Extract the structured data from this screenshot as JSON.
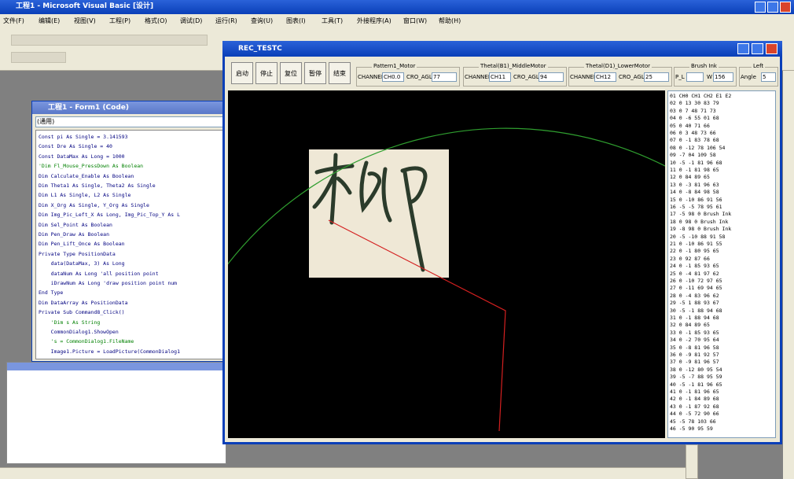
{
  "ide": {
    "title": "工程1 - Microsoft Visual Basic [设计]",
    "menu": [
      "文件(F)",
      "编辑(E)",
      "视图(V)",
      "工程(P)",
      "格式(O)",
      "调试(D)",
      "运行(R)",
      "查询(U)",
      "图表(I)",
      "工具(T)",
      "外接程序(A)",
      "窗口(W)",
      "帮助(H)"
    ]
  },
  "code_window": {
    "title": "工程1 - Form1 (Code)",
    "object": "(通用)",
    "lines": [
      "Const pi As Single = 3.141593",
      "Const Dre As Single = 40",
      "Const DataMax As Long = 1000",
      "'Dim Fl_Mouse_PressDown As Boolean",
      "Dim Calculate_Enable As Boolean",
      "Dim Theta1 As Single, Theta2 As Single",
      "Dim L1 As Single, L2 As Single",
      "Dim X_Org As Single, Y_Org As Single",
      "Dim Img_Pic_Left_X As Long, Img_Pic_Top_Y As L",
      "Dim Sel_Point As Boolean",
      "Dim Pen_Draw As Boolean",
      "Dim Pen_Lift_Once As Boolean",
      "Private Type PositionData",
      "    data(DataMax, 3) As Long",
      "    dataNum As Long 'all position point",
      "    iDrawNum As Long 'draw position point num",
      "End Type",
      "Dim DataArray As PositionData",
      "Private Sub Command8_Click()",
      "    'Dim s As String",
      "    CommonDialog1.ShowOpen",
      "    's = CommonDialog1.FileName",
      "    Image1.Picture = LoadPicture(CommonDialog1"
    ]
  },
  "dialog": {
    "title": "REC_TESTC",
    "buttons": [
      "启动",
      "停止",
      "复位",
      "暂停",
      "结束"
    ],
    "groups": [
      {
        "title": "Pattern1_Motor",
        "channel_label": "CHANNEL",
        "channel": "CH0.0",
        "angle_label": "CRO_AGL",
        "angle": "77"
      },
      {
        "title": "Thetal(B1)_MiddleMotor",
        "channel_label": "CHANNEL",
        "channel": "CH11",
        "angle_label": "CRO_AGL",
        "angle": "94"
      },
      {
        "title": "Thetal(D1)_LowerMotor",
        "channel_label": "CHANNEL",
        "channel": "CH12",
        "angle_label": "CRO_AGL",
        "angle": "25"
      }
    ],
    "brush": {
      "title": "Brush Ink",
      "pl_label": "P_L",
      "w_label": "W",
      "w": "156"
    },
    "left": {
      "title": "Left",
      "angle_label": "Angle",
      "angle": "5"
    },
    "list": [
      "01 CH0 CH1 CH2 E1 E2",
      "02 0 13 30 83 79",
      "03 0 7 48 71 73",
      "04 0 -6 55 01 68",
      "05 0 40 71 66",
      "06 0 3 48 73 66",
      "07 0 -1 83 78 68",
      "08 0 -12 78 106 54",
      "09 -7 04 109 58",
      "10 -5 -1 81 96 68",
      "11 0 -1 81 98 65",
      "12 0 84 89 65",
      "13 0 -3 81 96 63",
      "14 0 -8 84 98 58",
      "15 0 -10 86 91 56",
      "16 -5 -5 78 95 61",
      "17 -5 98 0 Brush Ink",
      "18 0 98 0 Brush Ink",
      "19 -8 98 0 Brush Ink",
      "20 -5 -10 88 91 58",
      "21 0 -10 86 91 55",
      "22 0 -1 80 95 65",
      "23 0 92 87 66",
      "24 0 -1 85 93 65",
      "25 0 -4 81 97 62",
      "26 0 -10 72 97 65",
      "27 0 -11 69 94 65",
      "28 0 -4 83 96 62",
      "29 -5 1 88 93 67",
      "30 -5 -1 88 94 68",
      "31 0 -1 88 94 68",
      "32 0 84 89 65",
      "33 0 -1 85 93 65",
      "34 0 -2 70 95 64",
      "35 0 -8 81 96 58",
      "36 0 -9 81 92 57",
      "37 0 -9 81 96 57",
      "38 0 -12 80 95 54",
      "39 -5 -7 88 95 59",
      "40 -5 -1 81 96 65",
      "41 0 -1 81 96 65",
      "42 0 -1 84 89 68",
      "43 0 -1 87 92 68",
      "44 0 -5 72 90 66",
      "45 -5 78 103 66",
      "46 -5 90 95 59"
    ]
  }
}
